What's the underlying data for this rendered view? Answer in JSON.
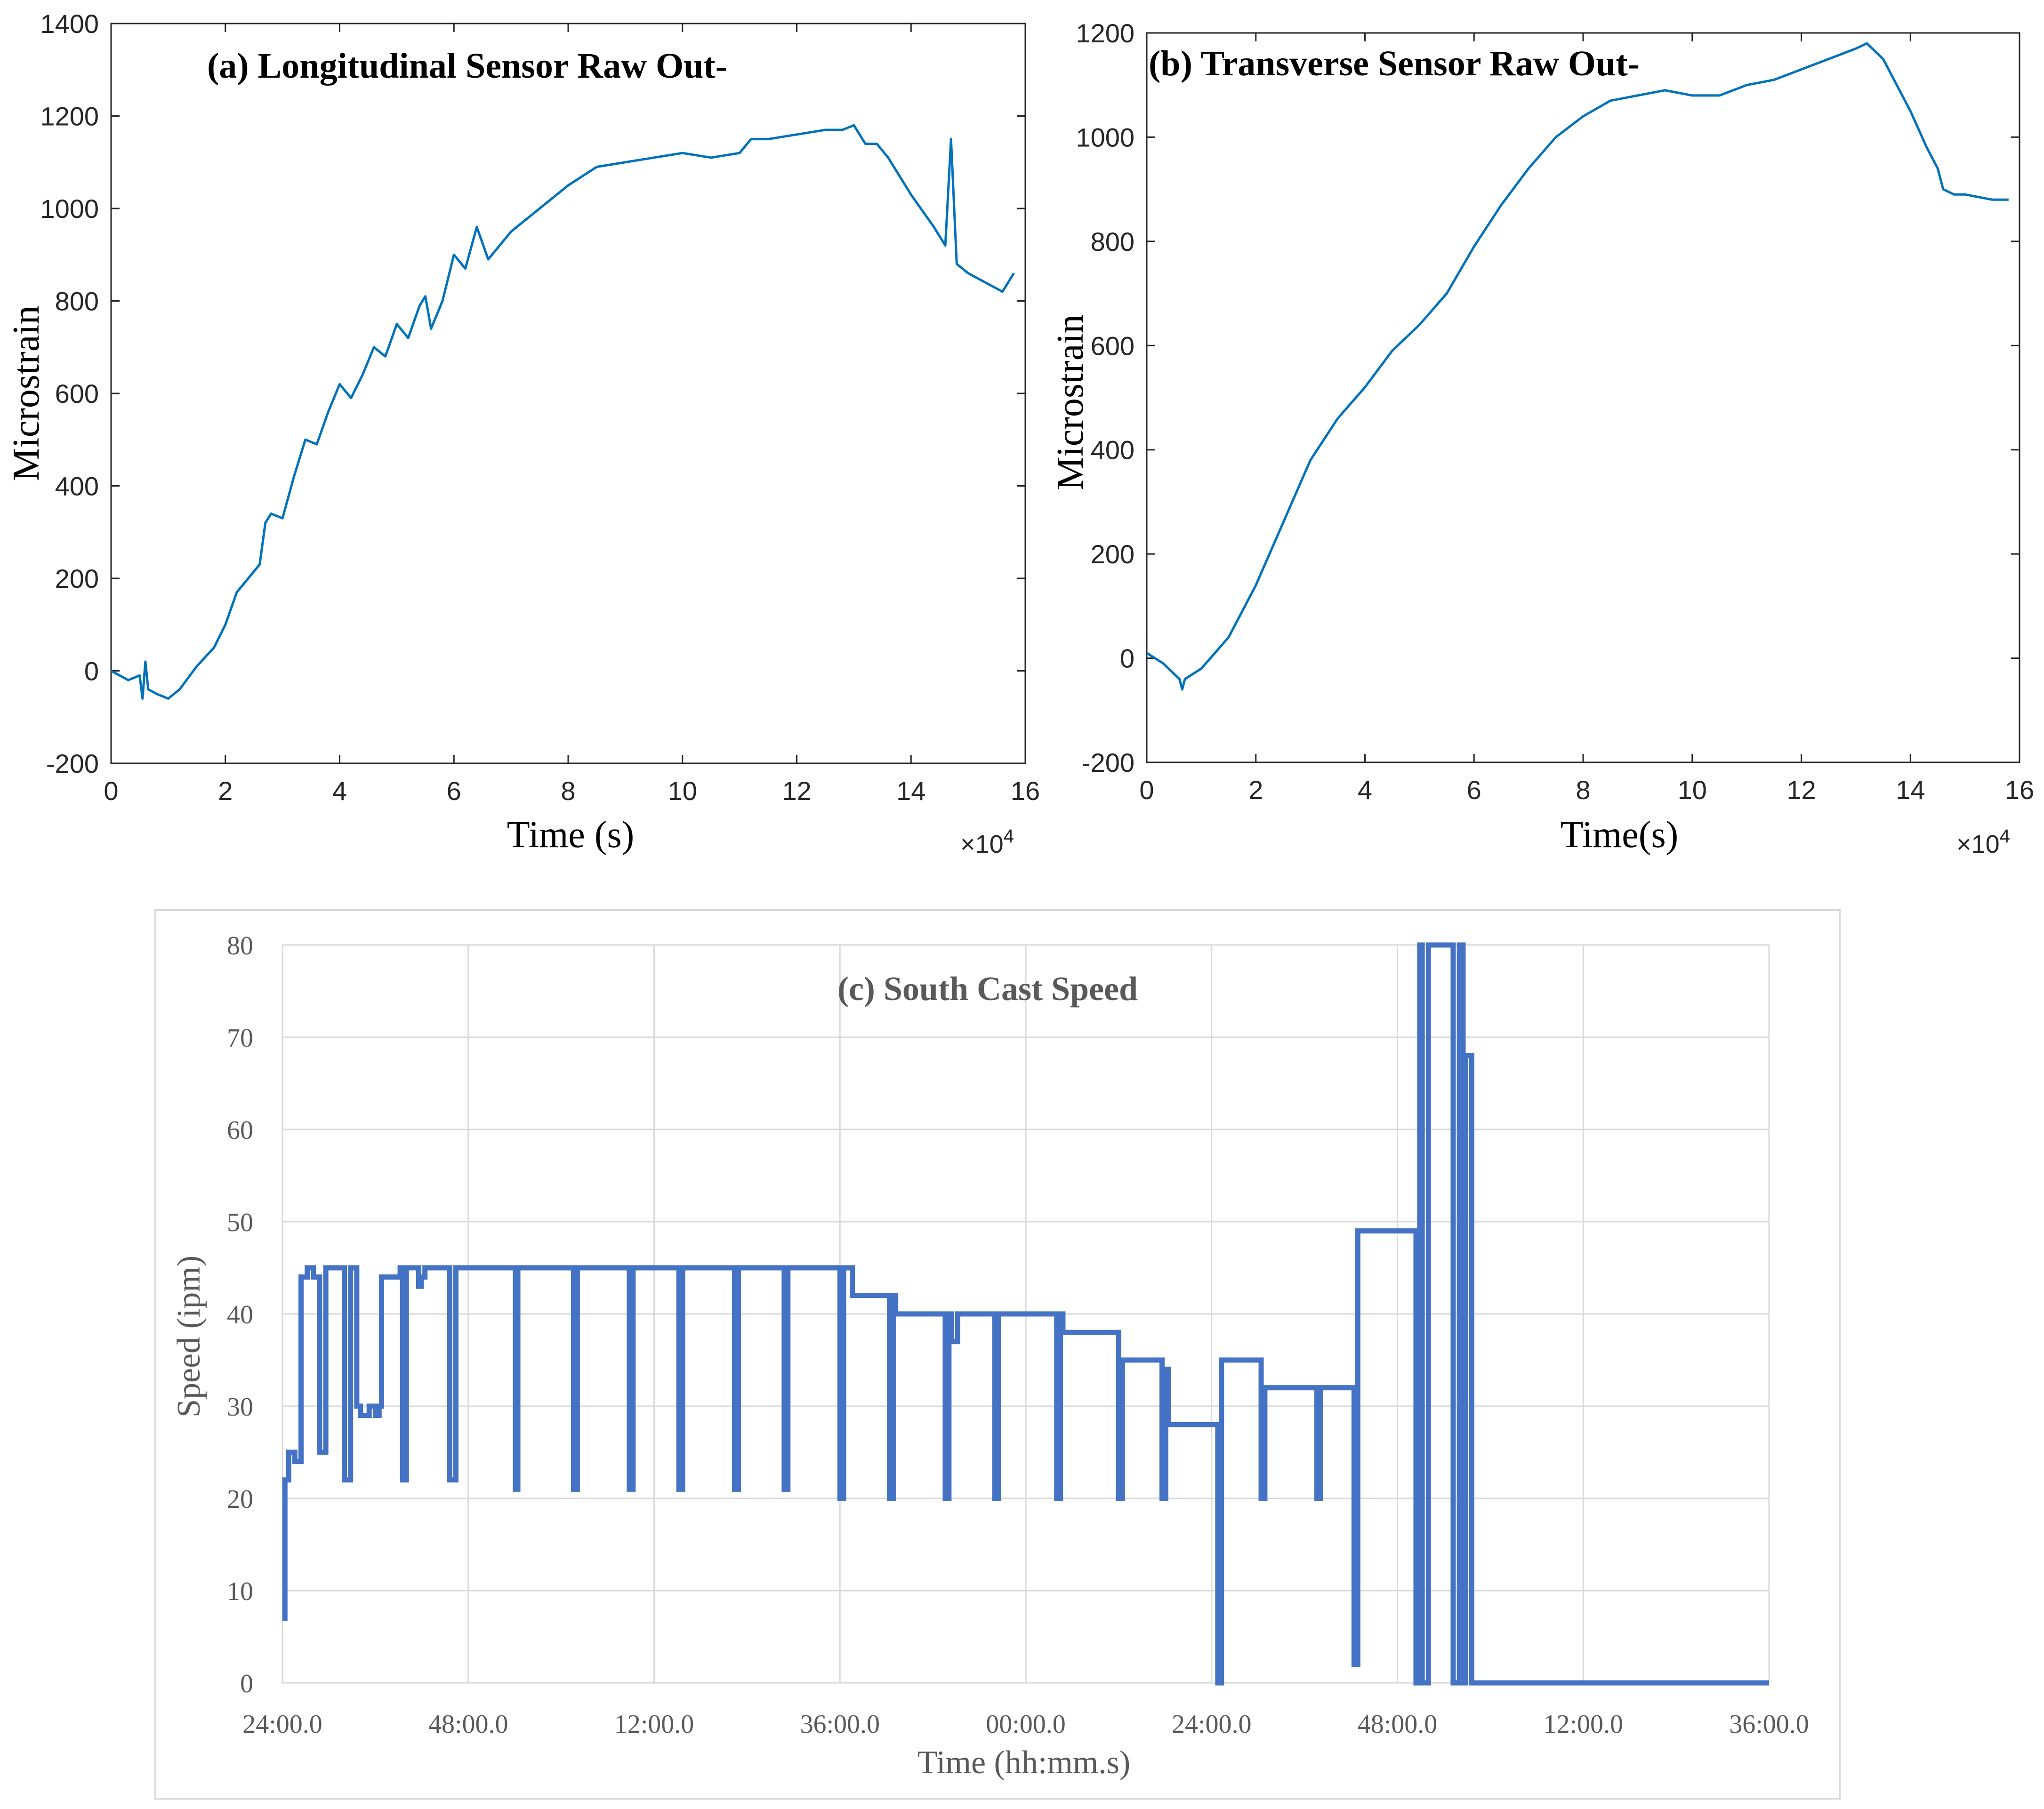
{
  "chart_data": [
    {
      "id": "a",
      "type": "line",
      "title": "(a)  Longitudinal Sensor Raw Out-",
      "xlabel": "Time (s)",
      "ylabel": "Microstrain",
      "x_multiplier_label": "×10",
      "x_multiplier_exp": "4",
      "xlim": [
        0,
        16
      ],
      "ylim": [
        -200,
        1400
      ],
      "xticks": [
        "0",
        "2",
        "4",
        "6",
        "8",
        "10",
        "12",
        "14",
        "16"
      ],
      "yticks": [
        "-200",
        "0",
        "200",
        "400",
        "600",
        "800",
        "1000",
        "1200",
        "1400"
      ],
      "series_color": "#0072bd",
      "x": [
        0,
        0.3,
        0.5,
        0.55,
        0.6,
        0.65,
        0.8,
        1.0,
        1.2,
        1.5,
        1.8,
        2.0,
        2.2,
        2.4,
        2.6,
        2.7,
        2.8,
        3.0,
        3.2,
        3.4,
        3.6,
        3.8,
        4.0,
        4.2,
        4.4,
        4.6,
        4.8,
        5.0,
        5.2,
        5.4,
        5.5,
        5.6,
        5.8,
        6.0,
        6.2,
        6.4,
        6.6,
        6.8,
        7.0,
        7.5,
        8.0,
        8.5,
        9.0,
        9.5,
        10.0,
        10.5,
        11.0,
        11.2,
        11.5,
        12.0,
        12.5,
        12.8,
        13.0,
        13.2,
        13.4,
        13.6,
        14.0,
        14.4,
        14.6,
        14.7,
        14.8,
        14.9,
        15.0,
        15.3,
        15.6,
        15.8
      ],
      "y": [
        0,
        -20,
        -10,
        -60,
        20,
        -40,
        -50,
        -60,
        -40,
        10,
        50,
        100,
        170,
        200,
        230,
        320,
        340,
        330,
        420,
        500,
        490,
        560,
        620,
        590,
        640,
        700,
        680,
        750,
        720,
        790,
        810,
        740,
        800,
        900,
        870,
        960,
        890,
        920,
        950,
        1000,
        1050,
        1090,
        1100,
        1110,
        1120,
        1110,
        1120,
        1150,
        1150,
        1160,
        1170,
        1170,
        1180,
        1140,
        1140,
        1110,
        1030,
        960,
        920,
        1150,
        880,
        870,
        860,
        840,
        820,
        860
      ]
    },
    {
      "id": "b",
      "type": "line",
      "title": "(b) Transverse Sensor Raw Out-",
      "xlabel": "Time(s)",
      "ylabel": "Microstrain",
      "x_multiplier_label": "×10",
      "x_multiplier_exp": "4",
      "xlim": [
        0,
        16
      ],
      "ylim": [
        -200,
        1200
      ],
      "xticks": [
        "0",
        "2",
        "4",
        "6",
        "8",
        "10",
        "12",
        "14",
        "16"
      ],
      "yticks": [
        "-200",
        "0",
        "200",
        "400",
        "600",
        "800",
        "1000",
        "1200"
      ],
      "series_color": "#0072bd",
      "x": [
        0,
        0.3,
        0.6,
        0.65,
        0.7,
        1.0,
        1.5,
        2.0,
        2.5,
        3.0,
        3.5,
        4.0,
        4.5,
        5.0,
        5.5,
        6.0,
        6.5,
        7.0,
        7.5,
        8.0,
        8.5,
        9.0,
        9.5,
        10.0,
        10.5,
        11.0,
        11.5,
        12.0,
        12.5,
        13.0,
        13.2,
        13.5,
        14.0,
        14.3,
        14.5,
        14.6,
        14.8,
        15.0,
        15.5,
        15.8
      ],
      "y": [
        10,
        -10,
        -40,
        -60,
        -40,
        -20,
        40,
        140,
        260,
        380,
        460,
        520,
        590,
        640,
        700,
        790,
        870,
        940,
        1000,
        1040,
        1070,
        1080,
        1090,
        1080,
        1080,
        1100,
        1110,
        1130,
        1150,
        1170,
        1180,
        1150,
        1050,
        980,
        940,
        900,
        890,
        890,
        880,
        880
      ]
    },
    {
      "id": "c",
      "type": "line",
      "title": "(c) South Cast Speed",
      "xlabel": "Time (hh:mm.s)",
      "ylabel": "Speed (ipm)",
      "xlim": [
        0,
        12
      ],
      "ylim": [
        0,
        80
      ],
      "xticks": [
        "24:00.0",
        "48:00.0",
        "12:00.0",
        "36:00.0",
        "00:00.0",
        "24:00.0",
        "48:00.0",
        "12:00.0",
        "36:00.0"
      ],
      "yticks": [
        "0",
        "10",
        "20",
        "30",
        "40",
        "50",
        "60",
        "70",
        "80"
      ],
      "series_color": "#4472c4",
      "x": [
        0,
        0.02,
        0.05,
        0.1,
        0.15,
        0.2,
        0.25,
        0.3,
        0.35,
        0.45,
        0.5,
        0.55,
        0.6,
        0.63,
        0.7,
        0.75,
        0.78,
        0.8,
        0.95,
        0.97,
        1.0,
        1.1,
        1.12,
        1.15,
        1.2,
        1.25,
        1.3,
        1.35,
        1.4,
        1.42,
        1.45,
        1.5,
        1.55,
        1.6,
        1.8,
        1.85,
        1.88,
        1.9,
        1.95,
        2.3,
        2.35,
        2.38,
        2.4,
        2.45,
        2.75,
        2.8,
        2.83,
        2.85,
        2.9,
        3.15,
        3.2,
        3.23,
        3.25,
        3.3,
        3.6,
        3.65,
        3.68,
        3.7,
        3.75,
        4.0,
        4.05,
        4.08,
        4.1,
        4.15,
        4.45,
        4.5,
        4.53,
        4.55,
        4.6,
        4.85,
        4.9,
        4.93,
        4.95,
        5.0,
        5.3,
        5.35,
        5.38,
        5.4,
        5.45,
        5.7,
        5.75,
        5.78,
        5.8,
        5.85,
        6.2,
        6.25,
        6.28,
        6.3,
        6.35,
        6.7,
        6.75,
        6.78,
        6.8,
        6.85,
        7.05,
        7.1,
        7.13,
        7.15,
        7.2,
        7.5,
        7.55,
        7.58,
        7.6,
        7.65,
        7.85,
        7.9,
        7.93,
        7.95,
        8.0,
        8.3,
        8.35,
        8.38,
        8.4,
        8.45,
        8.6,
        8.65,
        8.68,
        8.7,
        8.75,
        9.1,
        9.15,
        9.18,
        9.2,
        9.25,
        9.45,
        9.5,
        9.53,
        9.55,
        9.6,
        10.15,
        10.2,
        10.23,
        10.25,
        10.3,
        10.4,
        10.42,
        10.45,
        10.5,
        10.55,
        10.6,
        10.65,
        10.67,
        10.7,
        10.72,
        10.75,
        10.8,
        10.82,
        10.85,
        10.87,
        10.9,
        11.2,
        11.5,
        12.0
      ],
      "y": [
        7,
        22,
        25,
        24,
        44,
        45,
        44,
        25,
        45,
        45,
        22,
        45,
        30,
        29,
        30,
        29,
        30,
        44,
        45,
        22,
        45,
        43,
        44,
        45,
        45,
        45,
        45,
        22,
        45,
        45,
        45,
        45,
        45,
        45,
        45,
        45,
        21,
        45,
        45,
        45,
        21,
        45,
        45,
        45,
        45,
        21,
        45,
        45,
        45,
        45,
        21,
        45,
        45,
        45,
        45,
        21,
        45,
        45,
        45,
        45,
        21,
        45,
        45,
        45,
        45,
        20,
        45,
        45,
        42,
        42,
        20,
        42,
        40,
        40,
        40,
        20,
        40,
        37,
        40,
        40,
        20,
        40,
        40,
        40,
        40,
        20,
        40,
        38,
        38,
        38,
        20,
        35,
        35,
        35,
        35,
        20,
        34,
        28,
        28,
        28,
        0,
        35,
        35,
        35,
        35,
        20,
        32,
        32,
        32,
        32,
        20,
        32,
        32,
        32,
        32,
        2,
        49,
        49,
        49,
        49,
        0,
        80,
        0,
        80,
        0,
        80,
        0,
        68,
        0,
        0,
        0,
        0,
        0,
        0,
        0,
        0,
        0,
        0,
        0,
        0,
        0,
        0,
        0,
        0,
        0,
        0,
        0,
        0,
        0,
        0,
        0,
        0,
        0
      ]
    }
  ]
}
